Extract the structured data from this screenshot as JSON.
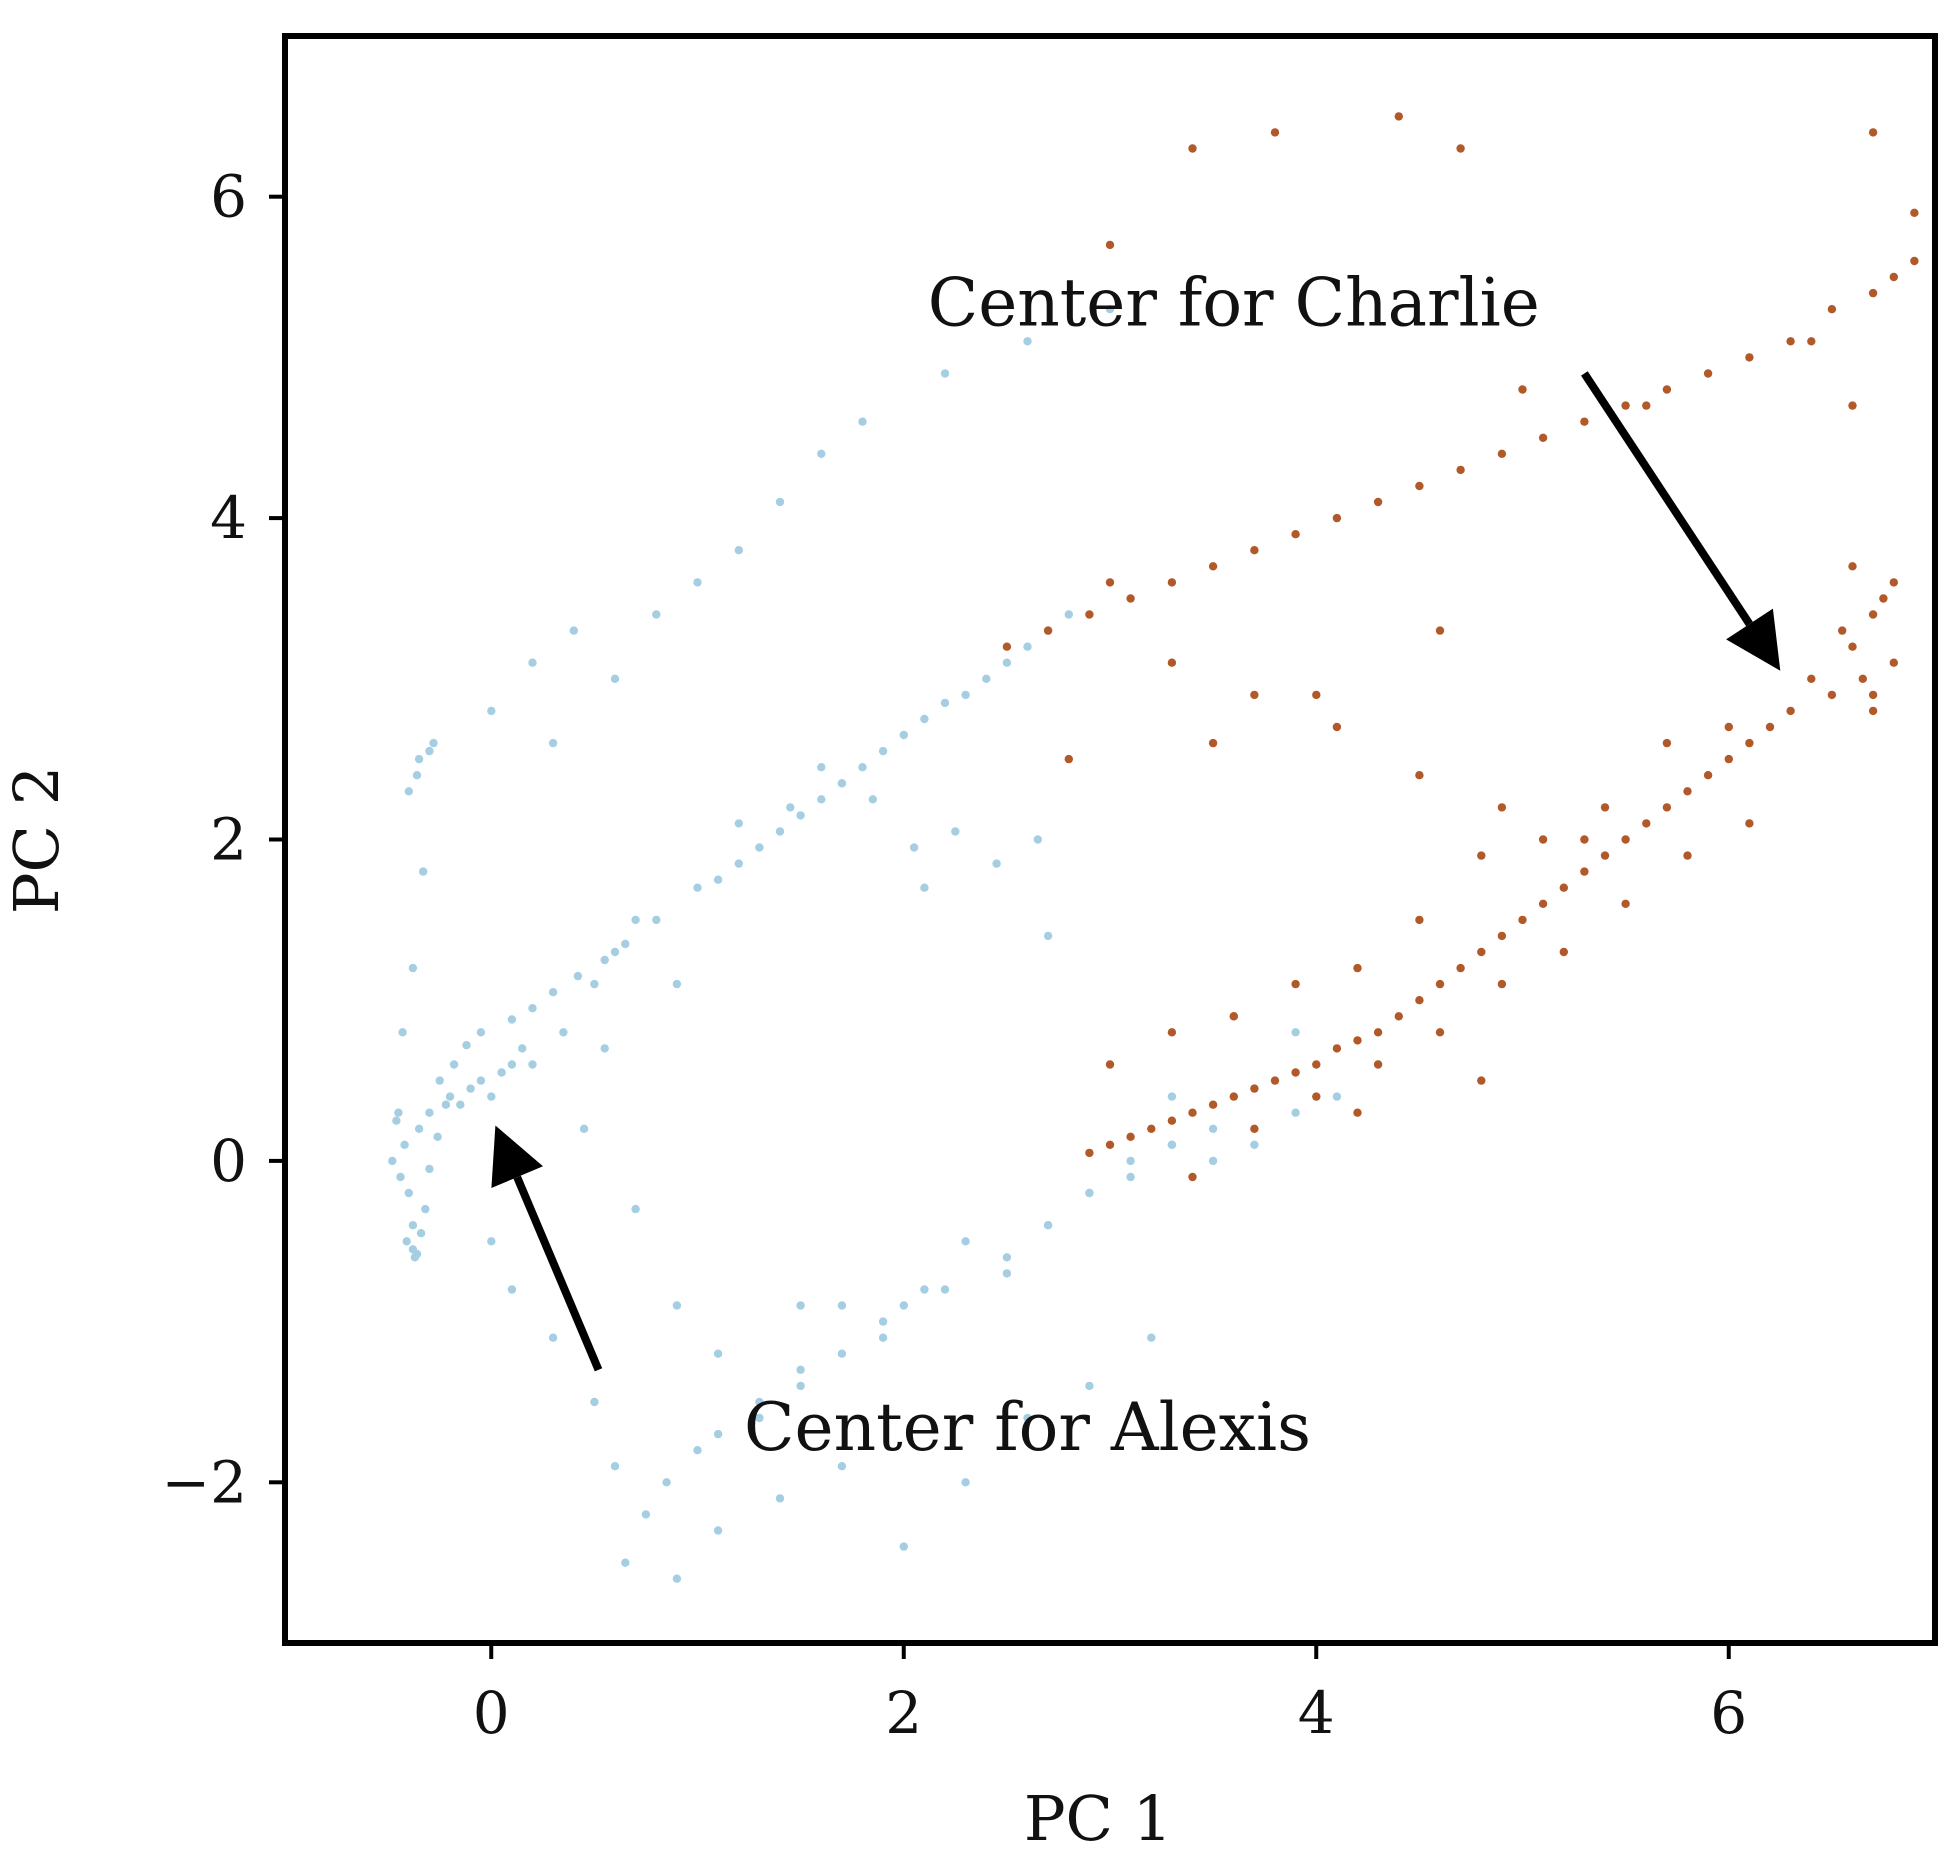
{
  "chart_data": {
    "type": "scatter",
    "title": "",
    "xlabel": "PC 1",
    "ylabel": "PC 2",
    "xlim": [
      -1.0,
      7.0
    ],
    "ylim": [
      -3.0,
      7.0
    ],
    "xticks": [
      0,
      2,
      4,
      6
    ],
    "xtick_labels": [
      "0",
      "2",
      "4",
      "6"
    ],
    "yticks": [
      -2,
      0,
      2,
      4,
      6
    ],
    "ytick_labels": [
      "−2",
      "0",
      "2",
      "4",
      "6"
    ],
    "grid": false,
    "legend": "none",
    "colors": {
      "series_blue": "#a6cee3",
      "series_orange": "#b15928",
      "arrow": "#000000"
    },
    "annotations": [
      {
        "text": "Center for Charlie",
        "text_at": [
          3.6,
          5.2
        ],
        "arrow_tail": [
          5.3,
          4.9
        ],
        "arrow_head": [
          6.25,
          3.05
        ]
      },
      {
        "text": "Center for Alexis",
        "text_at": [
          2.6,
          -1.8
        ],
        "arrow_tail": [
          0.52,
          -1.3
        ],
        "arrow_head": [
          0.02,
          0.22
        ]
      }
    ],
    "series": [
      {
        "color": "#a6cee3",
        "x": [
          -0.45,
          -0.42,
          -0.48,
          -0.4,
          -0.38,
          -0.44,
          -0.35,
          -0.46,
          -0.41,
          -0.37,
          -0.3,
          -0.25,
          -0.2,
          -0.15,
          -0.1,
          -0.05,
          0.0,
          0.05,
          0.1,
          0.15,
          -0.4,
          -0.35,
          -0.28,
          -0.33,
          -0.38,
          -0.43,
          -0.36,
          -0.3,
          -0.38,
          -0.36,
          -0.34,
          -0.32,
          -0.3,
          -0.26,
          -0.22,
          -0.18,
          -0.12,
          -0.05,
          0.1,
          0.2,
          0.3,
          0.42,
          0.55,
          0.65,
          0.8,
          1.0,
          1.1,
          1.2,
          1.3,
          1.4,
          1.5,
          1.6,
          1.7,
          1.8,
          1.9,
          2.0,
          2.1,
          2.2,
          2.3,
          2.4,
          2.5,
          2.6,
          2.7,
          2.8,
          1.2,
          1.45,
          1.6,
          1.7,
          1.85,
          2.05,
          2.25,
          2.45,
          2.65,
          0.0,
          0.1,
          0.3,
          0.5,
          0.6,
          0.75,
          0.85,
          1.0,
          1.1,
          1.3,
          1.5,
          1.7,
          1.9,
          2.0,
          2.2,
          2.5,
          2.7,
          2.9,
          3.1,
          3.3,
          3.5,
          0.2,
          0.35,
          0.5,
          0.6,
          0.7,
          0.55,
          0.45,
          0.7,
          0.9,
          1.1,
          1.3,
          1.5,
          1.7,
          1.9,
          2.1,
          2.3,
          2.5,
          2.7,
          2.9,
          3.1,
          3.3,
          3.5,
          3.7,
          3.9,
          4.1,
          4.3,
          0.65,
          0.9,
          1.1,
          1.4,
          1.7,
          2.0,
          2.3,
          2.6,
          2.9,
          3.2,
          0.0,
          0.2,
          0.4,
          0.6,
          0.8,
          1.0,
          1.2,
          1.4,
          1.6,
          1.8,
          2.2,
          2.6,
          3.0,
          0.3,
          0.9,
          1.5,
          2.1,
          2.7,
          3.3,
          3.9
        ],
        "y": [
          0.3,
          0.1,
          0.0,
          -0.2,
          -0.4,
          -0.1,
          0.2,
          0.25,
          -0.5,
          -0.6,
          0.3,
          0.5,
          0.4,
          0.35,
          0.45,
          0.5,
          0.4,
          0.55,
          0.6,
          0.7,
          2.3,
          2.5,
          2.6,
          1.8,
          1.2,
          0.8,
          2.4,
          2.55,
          -0.55,
          -0.58,
          -0.45,
          -0.3,
          -0.05,
          0.15,
          0.35,
          0.6,
          0.72,
          0.8,
          0.88,
          0.95,
          1.05,
          1.15,
          1.25,
          1.35,
          1.5,
          1.7,
          1.75,
          1.85,
          1.95,
          2.05,
          2.15,
          2.25,
          2.35,
          2.45,
          2.55,
          2.65,
          2.75,
          2.85,
          2.9,
          3.0,
          3.1,
          3.2,
          3.3,
          3.4,
          2.1,
          2.2,
          2.45,
          2.35,
          2.25,
          1.95,
          2.05,
          1.85,
          2.0,
          -0.5,
          -0.8,
          -1.1,
          -1.5,
          -1.9,
          -2.2,
          -2.0,
          -1.8,
          -1.7,
          -1.6,
          -1.4,
          -1.2,
          -1.0,
          -0.9,
          -0.8,
          -0.6,
          -0.4,
          -0.2,
          0.0,
          0.1,
          0.2,
          0.6,
          0.8,
          1.1,
          1.3,
          1.5,
          0.7,
          0.2,
          -0.3,
          -0.9,
          -1.2,
          -1.5,
          -1.3,
          -0.9,
          -1.1,
          -0.8,
          -0.5,
          -0.7,
          -0.4,
          -0.2,
          -0.1,
          0.1,
          0.0,
          0.1,
          0.3,
          0.4,
          0.6,
          -2.5,
          -2.6,
          -2.3,
          -2.1,
          -1.9,
          -2.4,
          -2.0,
          -1.6,
          -1.4,
          -1.1,
          2.8,
          3.1,
          3.3,
          3.0,
          3.4,
          3.6,
          3.8,
          4.1,
          4.4,
          4.6,
          4.9,
          5.1,
          5.3,
          2.6,
          1.1,
          -0.9,
          1.7,
          1.4,
          0.4,
          0.8
        ]
      },
      {
        "color": "#b15928",
        "x": [
          6.6,
          6.7,
          6.8,
          6.75,
          6.65,
          6.55,
          6.7,
          6.8,
          6.6,
          6.7,
          6.4,
          6.5,
          6.3,
          6.2,
          6.1,
          6.0,
          5.9,
          5.8,
          5.7,
          5.6,
          5.5,
          5.4,
          5.3,
          5.2,
          5.1,
          5.0,
          4.9,
          4.8,
          4.7,
          4.6,
          4.5,
          4.4,
          4.3,
          4.2,
          4.1,
          4.0,
          3.9,
          3.8,
          3.7,
          3.6,
          3.5,
          3.4,
          3.3,
          3.2,
          3.1,
          3.0,
          2.9,
          6.2,
          6.0,
          5.7,
          5.4,
          5.1,
          4.8,
          4.5,
          4.2,
          3.9,
          3.6,
          3.3,
          3.0,
          6.1,
          5.8,
          5.5,
          5.2,
          4.9,
          4.6,
          4.3,
          4.0,
          3.7,
          3.4,
          6.9,
          6.8,
          6.7,
          6.5,
          6.3,
          6.1,
          5.9,
          5.7,
          5.5,
          5.3,
          5.1,
          4.9,
          4.7,
          4.5,
          4.3,
          4.1,
          3.9,
          3.7,
          3.5,
          3.3,
          3.1,
          2.9,
          2.7,
          2.5,
          3.8,
          3.4,
          3.0,
          4.4,
          4.7,
          5.0,
          5.6,
          6.4,
          6.7,
          6.9,
          3.0,
          3.3,
          3.7,
          4.1,
          4.5,
          4.9,
          5.3,
          6.6,
          4.6,
          4.0,
          3.5,
          2.8,
          3.6,
          4.2,
          4.8
        ],
        "y": [
          3.2,
          3.4,
          3.1,
          3.5,
          3.0,
          3.3,
          2.9,
          3.6,
          3.7,
          2.8,
          3.0,
          2.9,
          2.8,
          2.7,
          2.6,
          2.5,
          2.4,
          2.3,
          2.2,
          2.1,
          2.0,
          1.9,
          1.8,
          1.7,
          1.6,
          1.5,
          1.4,
          1.3,
          1.2,
          1.1,
          1.0,
          0.9,
          0.8,
          0.75,
          0.7,
          0.6,
          0.55,
          0.5,
          0.45,
          0.4,
          0.35,
          0.3,
          0.25,
          0.2,
          0.15,
          0.1,
          0.05,
          3.2,
          2.7,
          2.6,
          2.2,
          2.0,
          1.9,
          1.5,
          1.2,
          1.1,
          0.9,
          0.8,
          0.6,
          2.1,
          1.9,
          1.6,
          1.3,
          1.1,
          0.8,
          0.6,
          0.4,
          0.2,
          -0.1,
          5.6,
          5.5,
          5.4,
          5.3,
          5.1,
          5.0,
          4.9,
          4.8,
          4.7,
          4.6,
          4.5,
          4.4,
          4.3,
          4.2,
          4.1,
          4.0,
          3.9,
          3.8,
          3.7,
          3.6,
          3.5,
          3.4,
          3.3,
          3.2,
          6.4,
          6.3,
          5.7,
          6.5,
          6.3,
          4.8,
          4.7,
          5.1,
          6.4,
          5.9,
          3.6,
          3.1,
          2.9,
          2.7,
          2.4,
          2.2,
          2.0,
          4.7,
          3.3,
          2.9,
          2.6,
          2.5,
          0.9,
          0.3,
          0.5
        ]
      }
    ]
  }
}
